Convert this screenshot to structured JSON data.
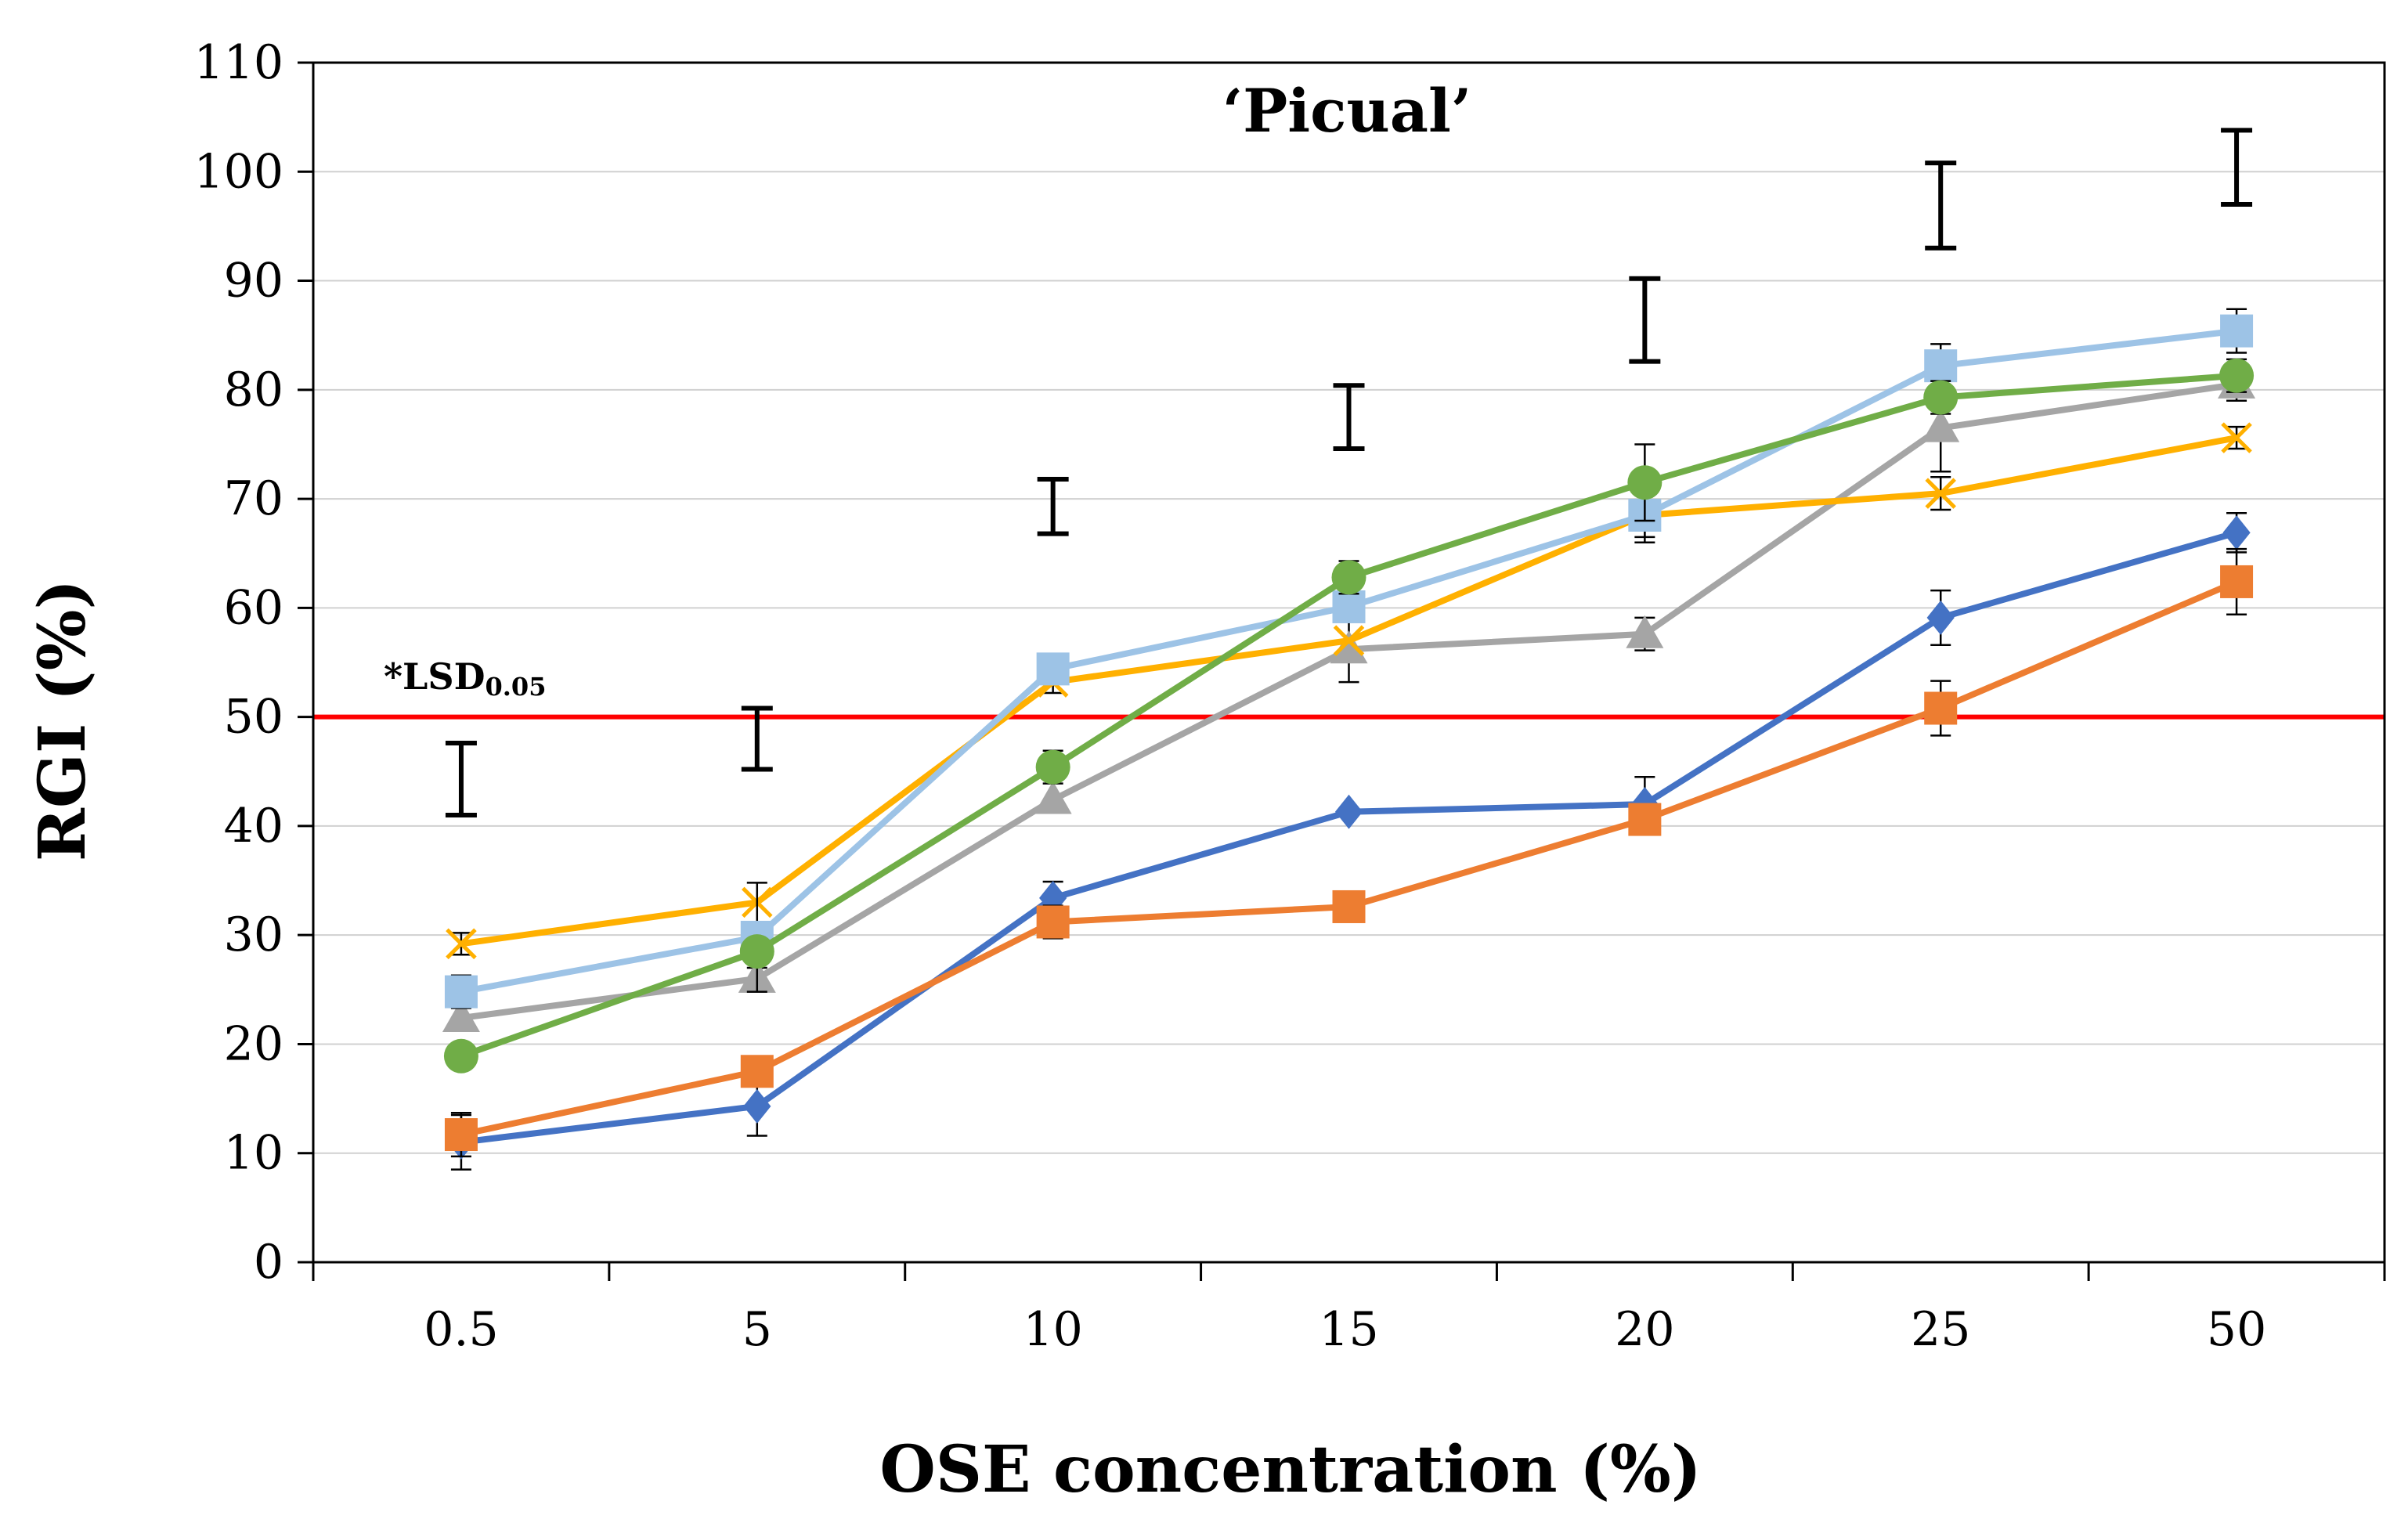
{
  "chart_data": {
    "type": "line",
    "title": "‘Picual’",
    "xlabel": "OSE concentration (%)",
    "ylabel": "RGI (%)",
    "categories": [
      "0.5",
      "5",
      "10",
      "15",
      "20",
      "25",
      "50"
    ],
    "ylim": [
      0,
      110
    ],
    "yticks": [
      0,
      10,
      20,
      30,
      40,
      50,
      60,
      70,
      80,
      90,
      100,
      110
    ],
    "grid": true,
    "legend": "none",
    "series": [
      {
        "color": "#4472C4",
        "marker": "diamond",
        "values": [
          11.0,
          14.3,
          33.4,
          41.3,
          42.0,
          59.1,
          66.9
        ],
        "errors": [
          2.5,
          2.7,
          1.5,
          0,
          2.5,
          2.5,
          1.8
        ]
      },
      {
        "color": "#ED7D31",
        "marker": "square",
        "values": [
          11.7,
          17.5,
          31.2,
          32.6,
          40.6,
          50.8,
          62.4
        ],
        "errors": [
          2.0,
          0,
          1.5,
          0,
          1.0,
          2.5,
          3.0
        ]
      },
      {
        "color": "#A5A5A5",
        "marker": "triangle",
        "values": [
          22.4,
          26.0,
          42.4,
          56.2,
          57.6,
          76.5,
          80.5
        ],
        "errors": [
          1.0,
          1.0,
          0,
          3.0,
          1.5,
          4.0,
          1.5
        ]
      },
      {
        "color": "#FFB000",
        "marker": "x",
        "values": [
          29.2,
          33.0,
          53.2,
          57.0,
          68.5,
          70.5,
          75.6
        ],
        "errors": [
          1.0,
          0,
          1.0,
          0,
          2.0,
          1.5,
          1.0
        ]
      },
      {
        "color": "#9DC3E6",
        "marker": "square",
        "values": [
          24.8,
          29.8,
          54.4,
          60.1,
          68.5,
          82.2,
          85.4
        ],
        "errors": [
          1.5,
          5.0,
          0,
          1.0,
          2.5,
          2.0,
          2.0
        ]
      },
      {
        "color": "#70AD47",
        "marker": "circle",
        "values": [
          18.9,
          28.5,
          45.4,
          62.8,
          71.5,
          79.3,
          81.3
        ],
        "errors": [
          0,
          0,
          1.5,
          1.5,
          3.5,
          1.5,
          1.5
        ]
      }
    ],
    "lsd_bars": [
      {
        "center": 44.3,
        "half": 3.3
      },
      {
        "center": 48.0,
        "half": 2.8
      },
      {
        "center": 69.3,
        "half": 2.5
      },
      {
        "center": 77.5,
        "half": 2.9
      },
      {
        "center": 86.4,
        "half": 3.8
      },
      {
        "center": 96.9,
        "half": 3.9
      },
      {
        "center": 100.4,
        "half": 3.4
      }
    ],
    "reference_line": {
      "y": 50,
      "color": "#FF0000"
    },
    "annotation": {
      "text": "*LSD",
      "subscript": "0.05",
      "at_category": "0.5",
      "at_y": 50
    }
  }
}
